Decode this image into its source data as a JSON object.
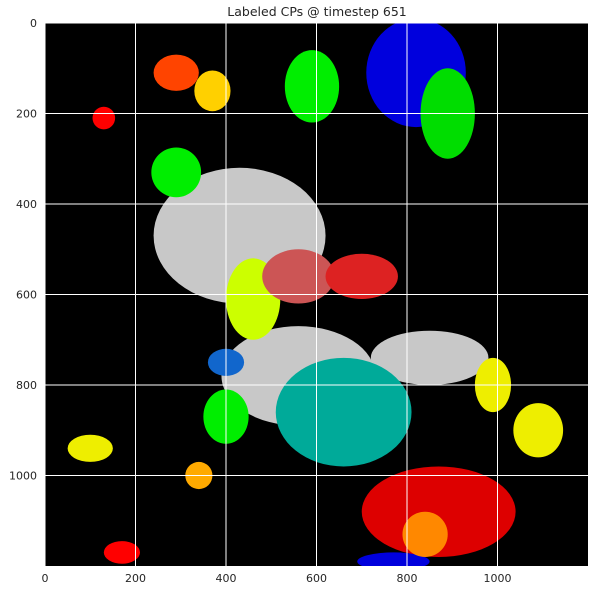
{
  "chart_data": {
    "type": "heatmap",
    "title": "Labeled CPs @ timestep 651",
    "xlabel": "",
    "ylabel": "",
    "xlim": [
      0,
      1200
    ],
    "ylim": [
      1200,
      0
    ],
    "y_inverted": true,
    "x_ticks": [
      0,
      200,
      400,
      600,
      800,
      1000
    ],
    "y_ticks": [
      0,
      200,
      400,
      600,
      800,
      1000
    ],
    "x_tick_labels": [
      "0",
      "200",
      "400",
      "600",
      "800",
      "1000"
    ],
    "y_tick_labels": [
      "0",
      "200",
      "400",
      "600",
      "800",
      "1000"
    ],
    "grid": true,
    "background_color": "#000000",
    "grid_color": "#ffffff",
    "label_colors": [
      "#c8c8c8",
      "#0000dd",
      "#00aa99",
      "#dd0000",
      "#ff4400",
      "#ffd000",
      "#ccff00",
      "#00ee00",
      "#cc5555",
      "#1166cc"
    ],
    "regions": [
      {
        "label": "gray-center",
        "color": "#c8c8c8",
        "x": 430,
        "y": 470,
        "rx": 190,
        "ry": 150
      },
      {
        "label": "gray-lower",
        "color": "#c8c8c8",
        "x": 560,
        "y": 780,
        "rx": 170,
        "ry": 110
      },
      {
        "label": "gray-right",
        "color": "#c8c8c8",
        "x": 850,
        "y": 740,
        "rx": 130,
        "ry": 60
      },
      {
        "label": "teal",
        "color": "#00aa99",
        "x": 660,
        "y": 860,
        "rx": 150,
        "ry": 120
      },
      {
        "label": "blue-top",
        "color": "#0000dd",
        "x": 820,
        "y": 110,
        "rx": 110,
        "ry": 120
      },
      {
        "label": "red-bottom",
        "color": "#dd0000",
        "x": 870,
        "y": 1080,
        "rx": 170,
        "ry": 100
      },
      {
        "label": "green-top",
        "color": "#00ee00",
        "x": 590,
        "y": 140,
        "rx": 60,
        "ry": 80
      },
      {
        "label": "green-right",
        "color": "#00dd00",
        "x": 890,
        "y": 200,
        "rx": 60,
        "ry": 100
      },
      {
        "label": "green-left",
        "color": "#00ee00",
        "x": 290,
        "y": 330,
        "rx": 55,
        "ry": 55
      },
      {
        "label": "green-lower",
        "color": "#00ee00",
        "x": 400,
        "y": 870,
        "rx": 50,
        "ry": 60
      },
      {
        "label": "yellow-green",
        "color": "#ccff00",
        "x": 460,
        "y": 610,
        "rx": 60,
        "ry": 90
      },
      {
        "label": "yellow-right",
        "color": "#eeee00",
        "x": 1090,
        "y": 900,
        "rx": 55,
        "ry": 60
      },
      {
        "label": "yellow-right2",
        "color": "#eeee00",
        "x": 990,
        "y": 800,
        "rx": 40,
        "ry": 60
      },
      {
        "label": "yellow-small",
        "color": "#ffd000",
        "x": 370,
        "y": 150,
        "rx": 40,
        "ry": 45
      },
      {
        "label": "orange-top",
        "color": "#ff4400",
        "x": 290,
        "y": 110,
        "rx": 50,
        "ry": 40
      },
      {
        "label": "rose-center",
        "color": "#cc5555",
        "x": 560,
        "y": 560,
        "rx": 80,
        "ry": 60
      },
      {
        "label": "red-center",
        "color": "#dd2222",
        "x": 700,
        "y": 560,
        "rx": 80,
        "ry": 50
      },
      {
        "label": "blue-small",
        "color": "#1166cc",
        "x": 400,
        "y": 750,
        "rx": 40,
        "ry": 30
      },
      {
        "label": "yellow-bottom-left",
        "color": "#eeee00",
        "x": 100,
        "y": 940,
        "rx": 50,
        "ry": 30
      },
      {
        "label": "blue-bottom",
        "color": "#0000dd",
        "x": 770,
        "y": 1190,
        "rx": 80,
        "ry": 20
      },
      {
        "label": "orange-bottom",
        "color": "#ff8800",
        "x": 840,
        "y": 1130,
        "rx": 50,
        "ry": 50
      },
      {
        "label": "orange-left",
        "color": "#ffaa00",
        "x": 340,
        "y": 1000,
        "rx": 30,
        "ry": 30
      },
      {
        "label": "red-left-small",
        "color": "#ff0000",
        "x": 130,
        "y": 210,
        "rx": 25,
        "ry": 25
      },
      {
        "label": "red-left-bottom",
        "color": "#ff0000",
        "x": 170,
        "y": 1170,
        "rx": 40,
        "ry": 25
      }
    ]
  }
}
